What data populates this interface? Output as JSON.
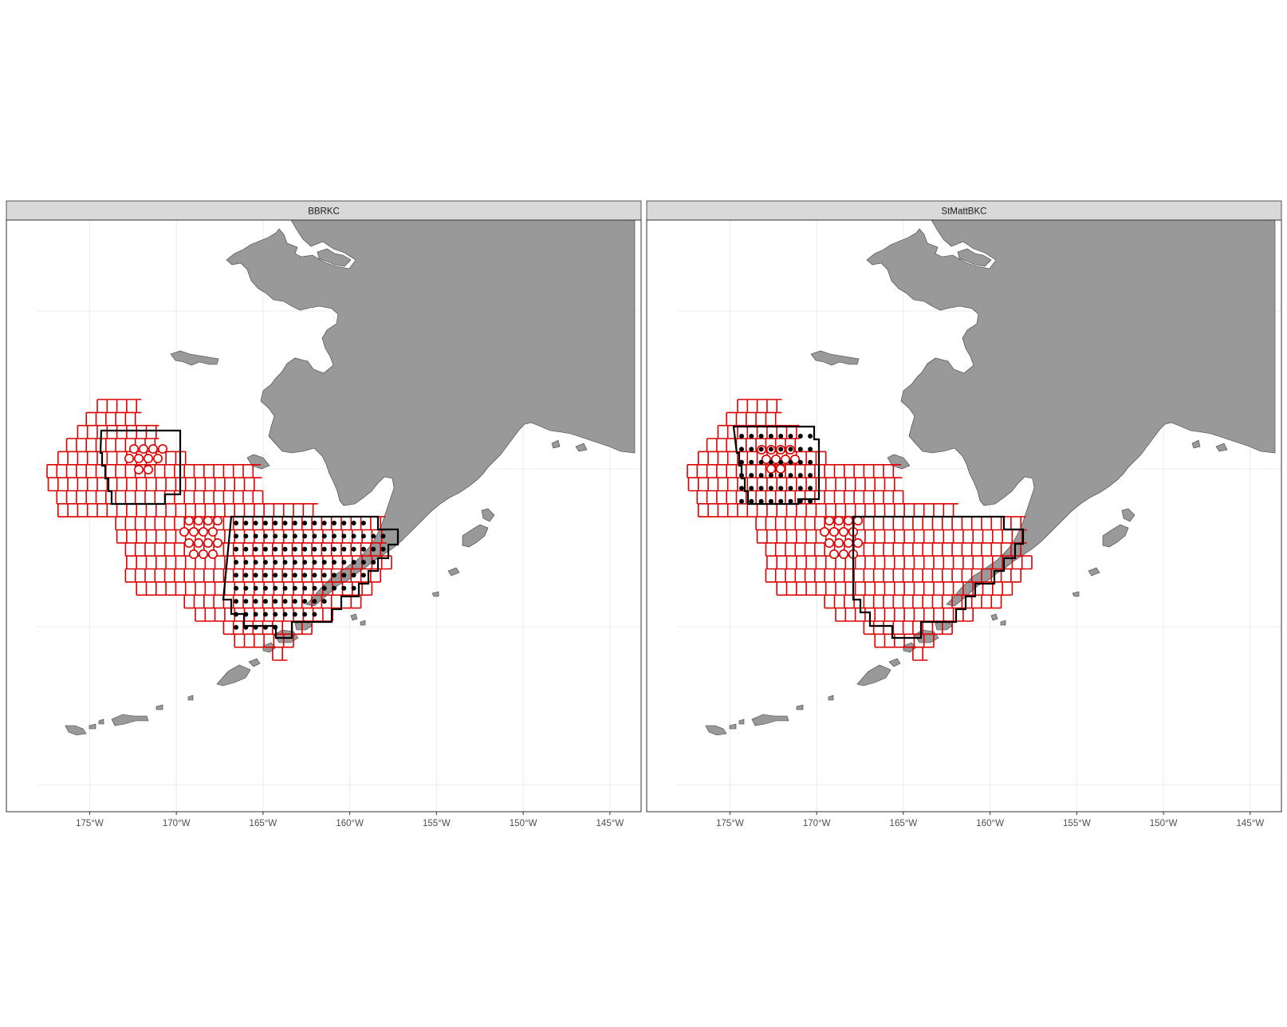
{
  "figure": {
    "panels": [
      {
        "strip_label": "BBRKC",
        "survey_cells": "bbrkc"
      },
      {
        "strip_label": "StMattBKC",
        "survey_cells": "stmatt"
      }
    ],
    "x_ticks": [
      "175°W",
      "170°W",
      "165°W",
      "160°W",
      "155°W",
      "150°W",
      "145°W"
    ],
    "x_tick_lon": [
      -175,
      -170,
      -165,
      -160,
      -155,
      -150,
      -145
    ],
    "lon_range": [
      -179.8,
      -143.2
    ],
    "grid": "on",
    "colors": {
      "land": "#999999",
      "coast": "#3d3d3d",
      "grid_cell": "#dd0000",
      "management_area": "#000000",
      "station_dot": "#000000",
      "corner_station": "#dd0000",
      "strip_bg": "#d9d9d9",
      "panel_border": "#333333",
      "gridline": "#ebebeb"
    }
  }
}
